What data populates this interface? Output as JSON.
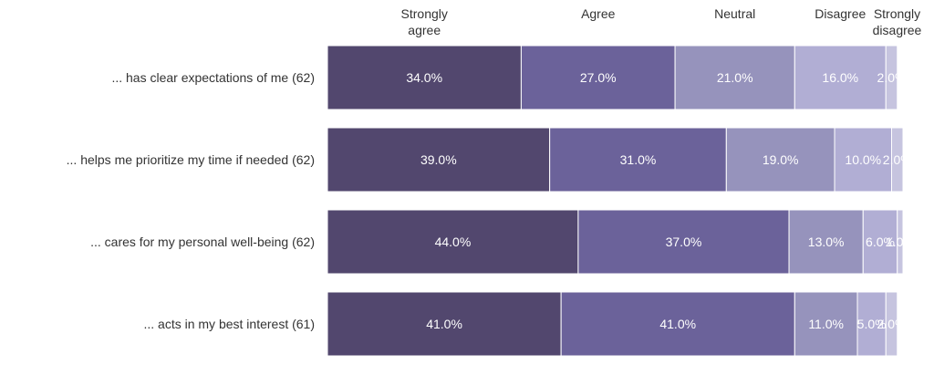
{
  "chart_data": {
    "type": "bar",
    "orientation": "horizontal",
    "stacked": true,
    "categories": [
      "... has clear expectations of me (62)",
      "... helps me prioritize my time if needed (62)",
      "... cares for my personal well-being (62)",
      "... acts in my best interest (61)"
    ],
    "series": [
      {
        "name": "Strongly agree",
        "color": "#52476e",
        "values": [
          34.0,
          39.0,
          44.0,
          41.0
        ],
        "labels": [
          "34.0%",
          "39.0%",
          "44.0%",
          "41.0%"
        ]
      },
      {
        "name": "Agree",
        "color": "#6b629a",
        "values": [
          27.0,
          31.0,
          37.0,
          41.0
        ],
        "labels": [
          "27.0%",
          "31.0%",
          "37.0%",
          "41.0%"
        ]
      },
      {
        "name": "Neutral",
        "color": "#9693bc",
        "values": [
          21.0,
          19.0,
          13.0,
          11.0
        ],
        "labels": [
          "21.0%",
          "19.0%",
          "13.0%",
          "11.0%"
        ]
      },
      {
        "name": "Disagree",
        "color": "#b1aed4",
        "values": [
          16.0,
          10.0,
          6.0,
          5.0
        ],
        "labels": [
          "16.0%",
          "10.0%",
          "6.0%",
          "5.0%"
        ]
      },
      {
        "name": "Strongly disagree",
        "color": "#c6c4df",
        "values": [
          2.0,
          2.0,
          1.0,
          2.0
        ],
        "labels": [
          "2.0%",
          "2.0%",
          "1.0%",
          "2.0%"
        ]
      }
    ],
    "xlim": [
      0,
      100
    ],
    "legend": "top",
    "grid": false,
    "title": "",
    "xlabel": "",
    "ylabel": ""
  }
}
